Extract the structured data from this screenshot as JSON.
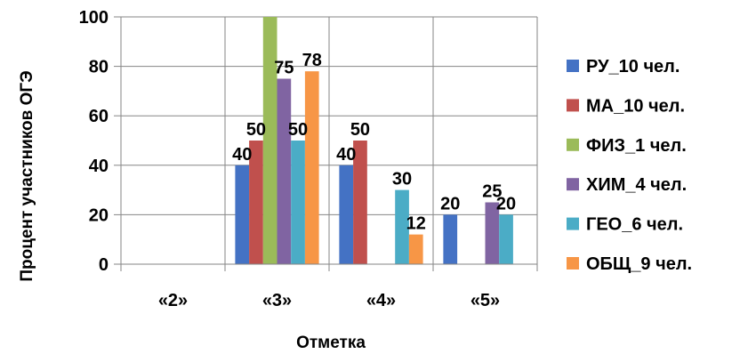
{
  "chart_data": {
    "type": "bar",
    "categories": [
      "«2»",
      "«3»",
      "«4»",
      "«5»"
    ],
    "series": [
      {
        "name": "РУ_10 чел.",
        "color": "#4472C4",
        "values": [
          0,
          40,
          40,
          20
        ]
      },
      {
        "name": "МА_10 чел.",
        "color": "#C0504D",
        "values": [
          0,
          50,
          50,
          0
        ]
      },
      {
        "name": "ФИЗ_1 чел.",
        "color": "#9BBB59",
        "values": [
          0,
          100,
          0,
          0
        ]
      },
      {
        "name": "ХИМ_4 чел.",
        "color": "#8064A2",
        "values": [
          0,
          75,
          0,
          25
        ]
      },
      {
        "name": "ГЕО_6 чел.",
        "color": "#4BACC6",
        "values": [
          0,
          50,
          30,
          20
        ]
      },
      {
        "name": "ОБЩ_9 чел.",
        "color": "#F79646",
        "values": [
          0,
          78,
          12,
          0
        ]
      }
    ],
    "data_labels": [
      {
        "series": 0,
        "category": 1,
        "text": "40"
      },
      {
        "series": 1,
        "category": 1,
        "text": "50"
      },
      {
        "series": 3,
        "category": 1,
        "text": "75"
      },
      {
        "series": 4,
        "category": 1,
        "text": "50"
      },
      {
        "series": 5,
        "category": 1,
        "text": "78"
      },
      {
        "series": 0,
        "category": 2,
        "text": "40"
      },
      {
        "series": 1,
        "category": 2,
        "text": "50"
      },
      {
        "series": 4,
        "category": 2,
        "text": "30"
      },
      {
        "series": 5,
        "category": 2,
        "text": "12"
      },
      {
        "series": 0,
        "category": 3,
        "text": "20"
      },
      {
        "series": 3,
        "category": 3,
        "text": "25"
      },
      {
        "series": 4,
        "category": 3,
        "text": "20"
      }
    ],
    "xlabel": "Отметка",
    "ylabel": "Процент участников ОГЭ",
    "ylim": [
      0,
      100
    ],
    "yticks": [
      0,
      20,
      40,
      60,
      80,
      100
    ],
    "grid": true,
    "legend": "right"
  }
}
